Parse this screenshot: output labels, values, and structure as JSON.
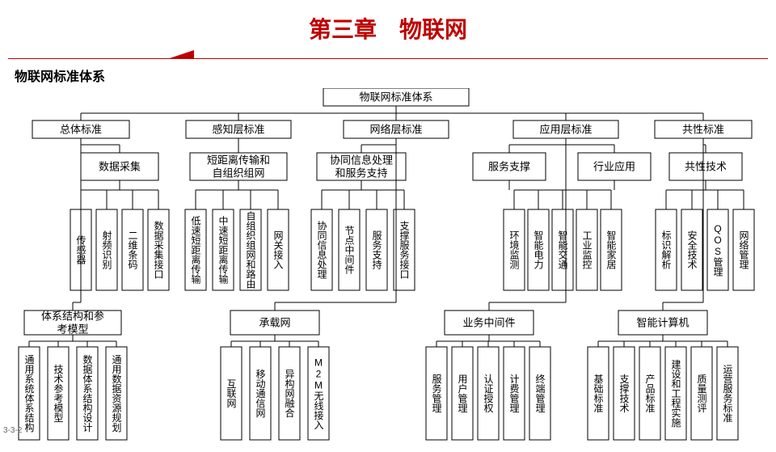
{
  "title": "第三章　物联网",
  "subtitle": "物联网标准体系",
  "pagenum": "3-3-2",
  "colors": {
    "accent": "#c00000",
    "box_fill": "#ffffff",
    "box_stroke": "#000000"
  },
  "root": "物联网标准体系",
  "L1": [
    "总体标准",
    "感知层标准",
    "网络层标准",
    "应用层标准",
    "共性标准"
  ],
  "L2": {
    "a": "数据采集",
    "b": "短距离传输和自组织组网",
    "c": "协同信息处理和服务支持",
    "d": "服务支撑",
    "e": "行业应用",
    "f": "共性技术"
  },
  "leaves": {
    "a": [
      "传感器",
      "射频识别",
      "二维条码",
      "数据采集接口"
    ],
    "b": [
      "低速短距离传输",
      "中速短距离传输",
      "自组织组网和路由",
      "网关接入"
    ],
    "c": [
      "协同信息处理",
      "节点中间件",
      "服务支持",
      "支撑服务接口"
    ],
    "d": [
      "环境监测",
      "智能电力",
      "智能交通",
      "工业监控",
      "智能家居"
    ],
    "f": [
      "标识解析",
      "安全技术",
      "QOS管理",
      "网络管理"
    ]
  },
  "L2b": {
    "g": "体系结构和参考模型",
    "h": "承载网",
    "i": "业务中间件",
    "j": "智能计算机"
  },
  "leaves2": {
    "g": [
      "通用系统体系结构",
      "技术参考模型",
      "数据体系结构设计",
      "通用数据资源规划"
    ],
    "h": [
      "互联网",
      "移动通信网",
      "异构网融合",
      "M2M无线接入"
    ],
    "i": [
      "服务管理",
      "用户管理",
      "认证授权",
      "计费管理",
      "终端管理"
    ],
    "j": [
      "基础标准",
      "支撑技术",
      "产品标准",
      "建设和工程实施",
      "质量测评",
      "运营服务标准"
    ]
  }
}
